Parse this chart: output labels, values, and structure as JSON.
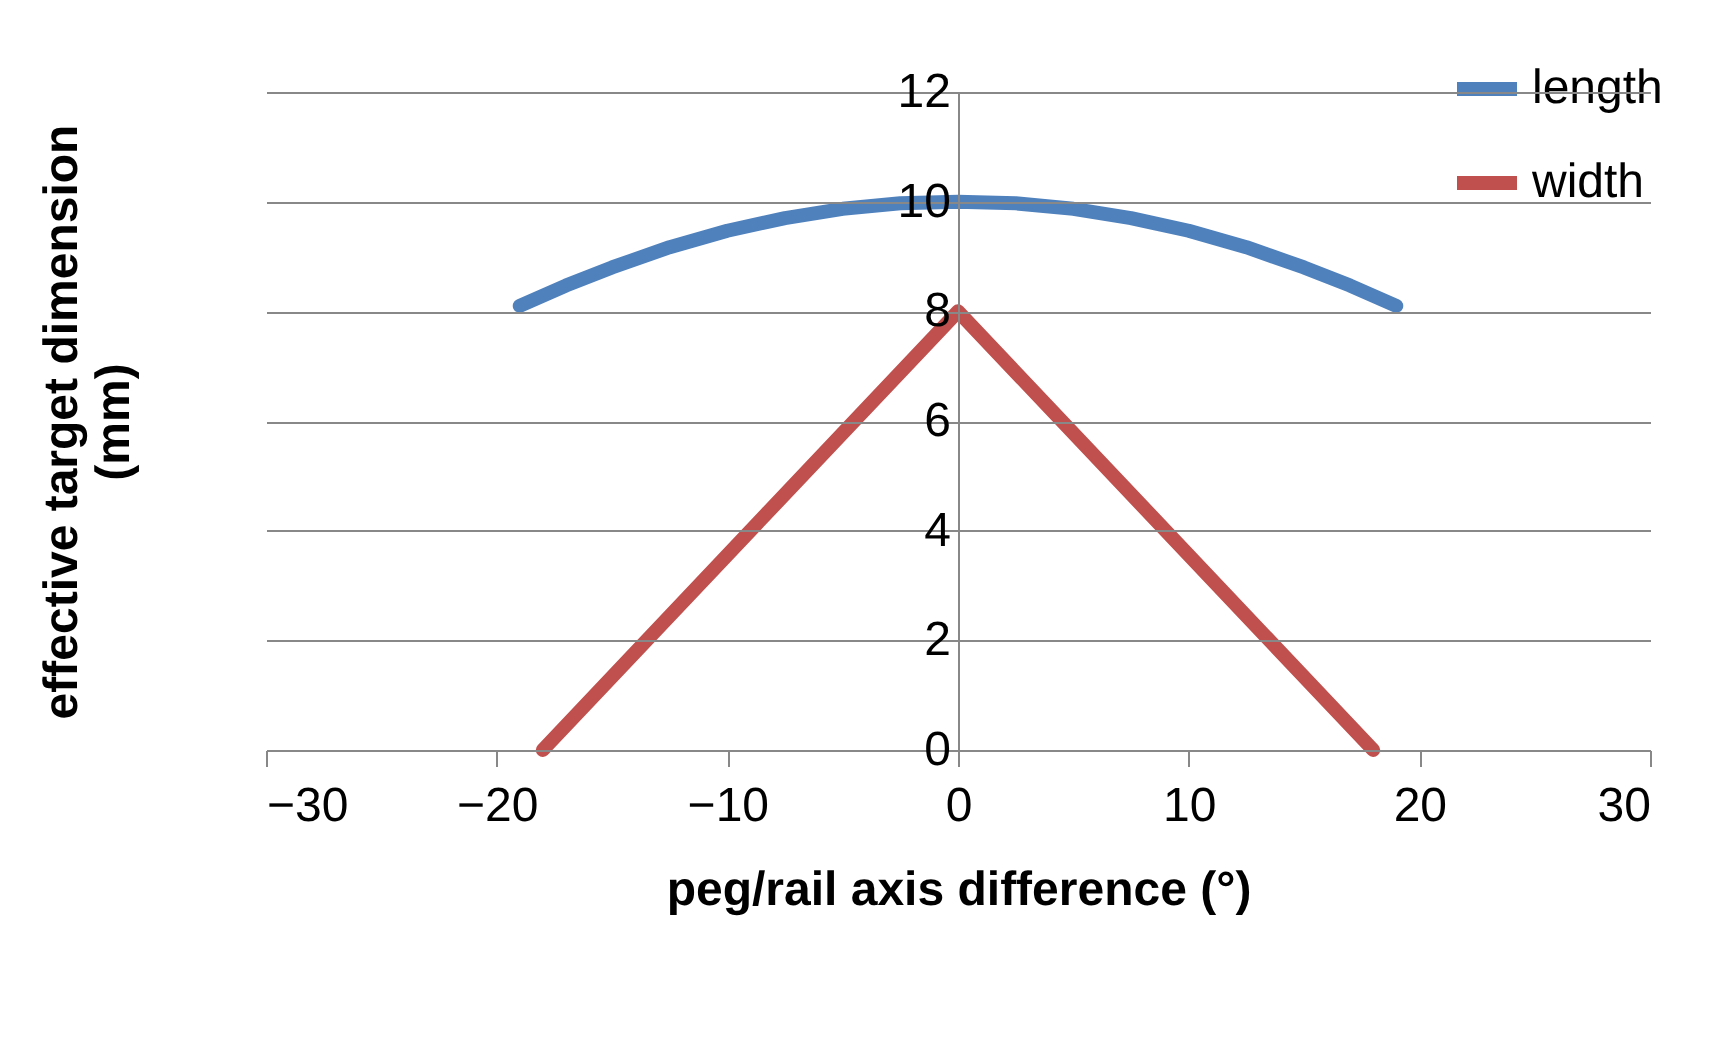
{
  "chart_data": {
    "type": "line",
    "xlabel": "peg/rail axis difference (°)",
    "ylabel": "effective target dimension (mm)",
    "xlim": [
      -30,
      30
    ],
    "xticks": [
      -30,
      -20,
      -10,
      0,
      10,
      20,
      30
    ],
    "ylim": [
      0,
      12
    ],
    "yticks": [
      0,
      2,
      4,
      6,
      8,
      10,
      12
    ],
    "grid": "y",
    "legend": "top right",
    "line_style": "solid",
    "series": [
      {
        "name": "length",
        "color": "#4f81bd",
        "x": [
          -19,
          -17,
          -15,
          -12.5,
          -10,
          -7.5,
          -5,
          -2.5,
          0,
          2.5,
          5,
          7.5,
          10,
          12.5,
          15,
          17,
          19
        ],
        "values": [
          8.1,
          8.47,
          8.8,
          9.17,
          9.47,
          9.7,
          9.87,
          9.97,
          10,
          9.97,
          9.87,
          9.7,
          9.47,
          9.17,
          8.8,
          8.47,
          8.1
        ]
      },
      {
        "name": "width",
        "color": "#c0504d",
        "x": [
          -18,
          0,
          18
        ],
        "values": [
          0,
          8,
          0
        ]
      }
    ]
  }
}
